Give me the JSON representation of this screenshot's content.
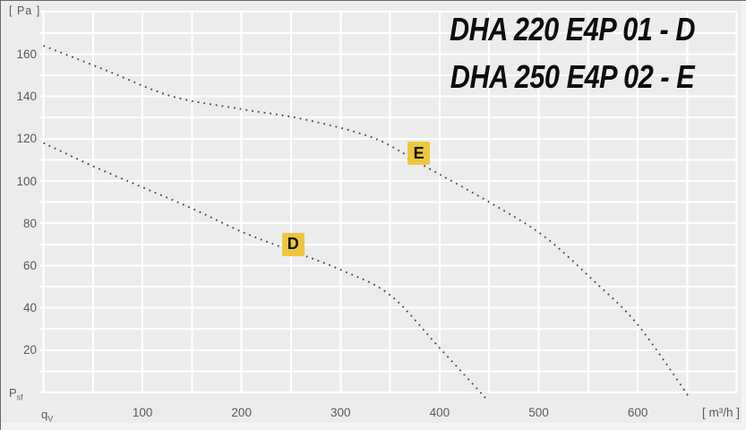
{
  "colors": {
    "background": "#ececec",
    "grid": "#ffffff",
    "curve": "#4a4a4a",
    "marker_bg": "#eec63c",
    "marker_text": "#111111",
    "title_text": "#0d0d0d",
    "axis_text": "#5a5a5a"
  },
  "titles": {
    "line1": "DHA 220 E4P 01 - D",
    "line2": "DHA 250 E4P 02 - E"
  },
  "chart_data": {
    "type": "line",
    "title": "DHA 220 E4P 01 - D / DHA 250 E4P 02 - E",
    "xlabel": "[ m³/h ]",
    "ylabel": "[ Pa ]",
    "x_origin": {
      "base": "q",
      "sub": "V"
    },
    "y_origin": {
      "base": "P",
      "sub": "sf"
    },
    "xlim": [
      0,
      700
    ],
    "ylim": [
      0,
      180
    ],
    "x_ticks": [
      100,
      200,
      300,
      400,
      500,
      600
    ],
    "y_ticks": [
      20,
      40,
      60,
      80,
      100,
      120,
      140,
      160
    ],
    "grid_step_x": 50,
    "grid_step_y": 10,
    "grid": true,
    "line_style": "dotted",
    "legend_position": "none",
    "series": [
      {
        "name": "D",
        "label": "D",
        "marker": {
          "text": "D",
          "x": 252,
          "y": 70
        },
        "points": [
          [
            0,
            118
          ],
          [
            50,
            107
          ],
          [
            100,
            97
          ],
          [
            150,
            87
          ],
          [
            200,
            76
          ],
          [
            250,
            67
          ],
          [
            300,
            58
          ],
          [
            350,
            46
          ],
          [
            400,
            21
          ],
          [
            447,
            -3
          ]
        ]
      },
      {
        "name": "E",
        "label": "E",
        "marker": {
          "text": "E",
          "x": 379,
          "y": 113
        },
        "points": [
          [
            0,
            164
          ],
          [
            65,
            152
          ],
          [
            130,
            140
          ],
          [
            200,
            134
          ],
          [
            265,
            129
          ],
          [
            335,
            120
          ],
          [
            385,
            107
          ],
          [
            450,
            90
          ],
          [
            505,
            74
          ],
          [
            555,
            53
          ],
          [
            600,
            32
          ],
          [
            653,
            -3
          ]
        ]
      }
    ]
  }
}
